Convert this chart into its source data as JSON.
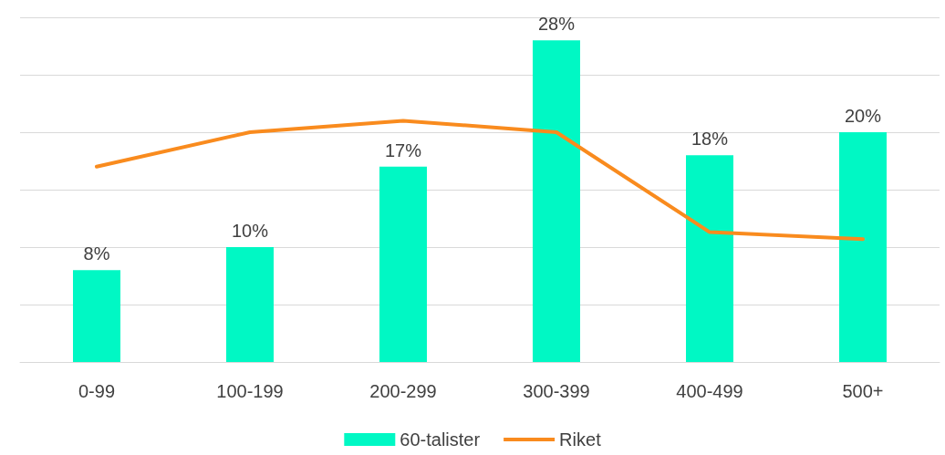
{
  "chart_data": {
    "type": "bar",
    "categories": [
      "0-99",
      "100-199",
      "200-299",
      "300-399",
      "400-499",
      "500+"
    ],
    "series": [
      {
        "name": "60-talister",
        "color": "#00f8c4",
        "values": [
          8,
          10,
          17,
          28,
          18,
          20
        ],
        "value_labels": [
          "8%",
          "10%",
          "17%",
          "28%",
          "18%",
          "20%"
        ]
      },
      {
        "name": "Riket",
        "type": "line",
        "color": "#f98b1e",
        "values": [
          17,
          20,
          21,
          20,
          11.3,
          10.7
        ]
      }
    ],
    "ylim": [
      0,
      30
    ],
    "yticks": [
      {
        "value": 0,
        "label": null
      },
      {
        "value": 5,
        "label": null
      },
      {
        "value": 10,
        "label": null
      },
      {
        "value": 15,
        "label": null
      },
      {
        "value": 20,
        "label": null
      },
      {
        "value": 25,
        "label": null
      },
      {
        "value": 30,
        "label": null
      }
    ],
    "tick_labels": "x",
    "grid": "y",
    "legend": "bottom",
    "marker": "none"
  }
}
